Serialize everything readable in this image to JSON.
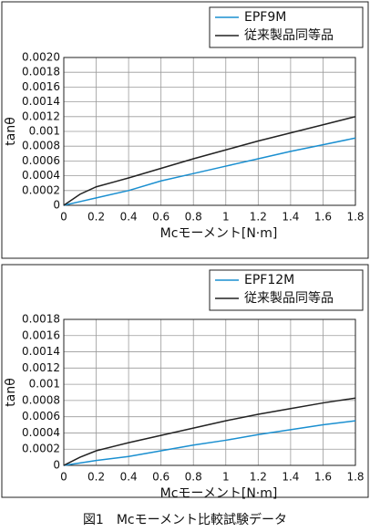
{
  "chart_data": [
    {
      "type": "line",
      "ylabel": "tanθ",
      "xlabel": "Mcモーメント[N·m]",
      "x": [
        0,
        0.1,
        0.2,
        0.4,
        0.6,
        0.8,
        1,
        1.2,
        1.4,
        1.6,
        1.8
      ],
      "series": [
        {
          "name": "EPF9M",
          "color": "#1a8fd0",
          "values": [
            0,
            5e-05,
            0.0001,
            0.0002,
            0.00033,
            0.00043,
            0.00053,
            0.00063,
            0.00073,
            0.00082,
            0.00091
          ]
        },
        {
          "name": "従来製品同等品",
          "color": "#222222",
          "values": [
            0,
            0.00015,
            0.00025,
            0.00037,
            0.0005,
            0.00063,
            0.00075,
            0.00087,
            0.00098,
            0.00109,
            0.0012
          ]
        }
      ],
      "xlim": [
        0,
        1.8
      ],
      "xticks": [
        0,
        0.2,
        0.4,
        0.6,
        0.8,
        1,
        1.2,
        1.4,
        1.6,
        1.8
      ],
      "ylim": [
        0,
        0.002
      ],
      "yticks": [
        0,
        0.0002,
        0.0004,
        0.0006,
        0.0008,
        0.001,
        0.0012,
        0.0014,
        0.0016,
        0.0018,
        {
          "value": 0.002,
          "label": "0.0020"
        }
      ],
      "grid": true
    },
    {
      "type": "line",
      "ylabel": "tanθ",
      "xlabel": "Mcモーメント[N·m]",
      "x": [
        0,
        0.1,
        0.2,
        0.4,
        0.6,
        0.8,
        1,
        1.2,
        1.4,
        1.6,
        1.8
      ],
      "series": [
        {
          "name": "EPF12M",
          "color": "#1a8fd0",
          "values": [
            0,
            3e-05,
            6e-05,
            0.00011,
            0.00018,
            0.00025,
            0.00031,
            0.00038,
            0.00044,
            0.0005,
            0.00055
          ]
        },
        {
          "name": "従来製品同等品",
          "color": "#222222",
          "values": [
            0,
            0.0001,
            0.00018,
            0.00028,
            0.00037,
            0.00046,
            0.00055,
            0.00063,
            0.0007,
            0.00077,
            0.00083
          ]
        }
      ],
      "xlim": [
        0,
        1.8
      ],
      "xticks": [
        0,
        0.2,
        0.4,
        0.6,
        0.8,
        1,
        1.2,
        1.4,
        1.6,
        1.8
      ],
      "ylim": [
        0,
        0.0018
      ],
      "yticks": [
        0,
        0.0002,
        0.0004,
        0.0006,
        0.0008,
        0.001,
        0.0012,
        0.0014,
        0.0016,
        0.0018
      ],
      "grid": true
    }
  ],
  "caption": "図1　Mcモーメント比較試験データ"
}
